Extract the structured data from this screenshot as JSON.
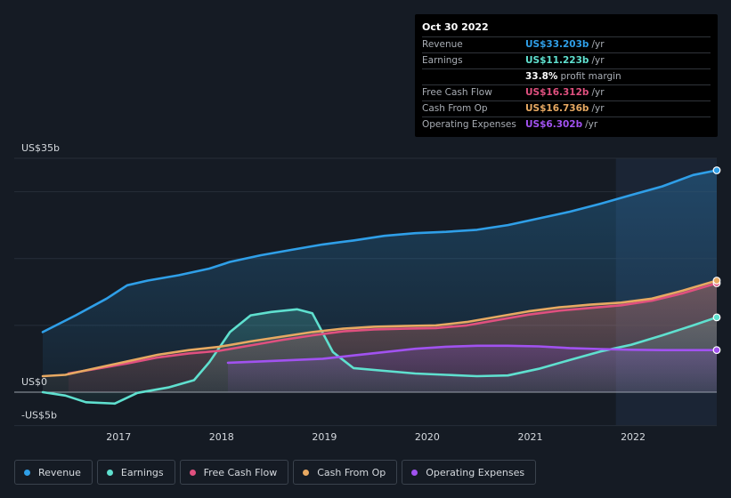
{
  "tooltip": {
    "date": "Oct 30 2022",
    "rows": [
      {
        "label": "Revenue",
        "value": "US$33.203b",
        "unit": "/yr",
        "color": "#2f9fe8"
      },
      {
        "label": "Earnings",
        "value": "US$11.223b",
        "unit": "/yr",
        "color": "#5fe0cf"
      },
      {
        "label": "",
        "value": "33.8%",
        "unit": "profit margin",
        "color": "#ffffff"
      },
      {
        "label": "Free Cash Flow",
        "value": "US$16.312b",
        "unit": "/yr",
        "color": "#e0507f"
      },
      {
        "label": "Cash From Op",
        "value": "US$16.736b",
        "unit": "/yr",
        "color": "#e7a962"
      },
      {
        "label": "Operating Expenses",
        "value": "US$6.302b",
        "unit": "/yr",
        "color": "#a152f0"
      }
    ]
  },
  "legend": [
    {
      "label": "Revenue",
      "color": "#2f9fe8"
    },
    {
      "label": "Earnings",
      "color": "#5fe0cf"
    },
    {
      "label": "Free Cash Flow",
      "color": "#e0507f"
    },
    {
      "label": "Cash From Op",
      "color": "#e7a962"
    },
    {
      "label": "Operating Expenses",
      "color": "#a152f0"
    }
  ],
  "chart_data": {
    "type": "line",
    "title": "",
    "xlabel": "",
    "ylabel": "",
    "x_ticks": [
      "2017",
      "2018",
      "2019",
      "2020",
      "2021",
      "2022"
    ],
    "y_labels": {
      "top": "US$35b",
      "zero": "US$0",
      "bottom": "-US$5b"
    },
    "ylim": [
      -5,
      35
    ],
    "xlim": [
      2016.28,
      2022.83
    ],
    "forecast_start": 2021.85,
    "series": [
      {
        "name": "Revenue",
        "color": "#2f9fe8",
        "points": [
          [
            2016.28,
            9
          ],
          [
            2016.6,
            11.5
          ],
          [
            2016.9,
            14
          ],
          [
            2017.1,
            16
          ],
          [
            2017.3,
            16.7
          ],
          [
            2017.6,
            17.5
          ],
          [
            2017.9,
            18.5
          ],
          [
            2018.1,
            19.5
          ],
          [
            2018.4,
            20.5
          ],
          [
            2018.7,
            21.3
          ],
          [
            2019.0,
            22.1
          ],
          [
            2019.3,
            22.7
          ],
          [
            2019.6,
            23.4
          ],
          [
            2019.9,
            23.8
          ],
          [
            2020.2,
            24
          ],
          [
            2020.5,
            24.3
          ],
          [
            2020.8,
            25
          ],
          [
            2021.1,
            26
          ],
          [
            2021.4,
            27
          ],
          [
            2021.7,
            28.2
          ],
          [
            2022.0,
            29.5
          ],
          [
            2022.3,
            30.8
          ],
          [
            2022.6,
            32.5
          ],
          [
            2022.83,
            33.2
          ]
        ]
      },
      {
        "name": "Earnings",
        "color": "#5fe0cf",
        "points": [
          [
            2016.28,
            0
          ],
          [
            2016.5,
            -0.5
          ],
          [
            2016.7,
            -1.5
          ],
          [
            2016.98,
            -1.7
          ],
          [
            2017.2,
            -0.1
          ],
          [
            2017.5,
            0.7
          ],
          [
            2017.75,
            1.8
          ],
          [
            2017.9,
            4.5
          ],
          [
            2018.1,
            9
          ],
          [
            2018.3,
            11.5
          ],
          [
            2018.5,
            12
          ],
          [
            2018.75,
            12.4
          ],
          [
            2018.9,
            11.8
          ],
          [
            2019.1,
            6
          ],
          [
            2019.3,
            3.6
          ],
          [
            2019.6,
            3.2
          ],
          [
            2019.9,
            2.8
          ],
          [
            2020.2,
            2.6
          ],
          [
            2020.5,
            2.4
          ],
          [
            2020.8,
            2.5
          ],
          [
            2021.1,
            3.5
          ],
          [
            2021.4,
            4.8
          ],
          [
            2021.7,
            6.1
          ],
          [
            2022.0,
            7.1
          ],
          [
            2022.3,
            8.5
          ],
          [
            2022.6,
            10
          ],
          [
            2022.83,
            11.2
          ]
        ]
      },
      {
        "name": "Free Cash Flow",
        "color": "#e0507f",
        "points": [
          [
            2016.53,
            2.8
          ],
          [
            2016.8,
            3.5
          ],
          [
            2017.1,
            4.3
          ],
          [
            2017.4,
            5.2
          ],
          [
            2017.7,
            5.8
          ],
          [
            2018.0,
            6.2
          ],
          [
            2018.3,
            7
          ],
          [
            2018.6,
            7.8
          ],
          [
            2018.9,
            8.5
          ],
          [
            2019.2,
            9.1
          ],
          [
            2019.5,
            9.4
          ],
          [
            2019.8,
            9.5
          ],
          [
            2020.1,
            9.6
          ],
          [
            2020.4,
            10
          ],
          [
            2020.7,
            10.8
          ],
          [
            2021.0,
            11.6
          ],
          [
            2021.3,
            12.2
          ],
          [
            2021.6,
            12.6
          ],
          [
            2021.9,
            13
          ],
          [
            2022.2,
            13.7
          ],
          [
            2022.5,
            14.8
          ],
          [
            2022.83,
            16.3
          ]
        ]
      },
      {
        "name": "Cash From Op",
        "color": "#e7a962",
        "points": [
          [
            2016.28,
            2.4
          ],
          [
            2016.5,
            2.6
          ],
          [
            2016.8,
            3.6
          ],
          [
            2017.1,
            4.6
          ],
          [
            2017.4,
            5.6
          ],
          [
            2017.7,
            6.3
          ],
          [
            2018.0,
            6.8
          ],
          [
            2018.3,
            7.6
          ],
          [
            2018.6,
            8.3
          ],
          [
            2018.9,
            9
          ],
          [
            2019.2,
            9.5
          ],
          [
            2019.5,
            9.8
          ],
          [
            2019.8,
            9.9
          ],
          [
            2020.1,
            10
          ],
          [
            2020.4,
            10.5
          ],
          [
            2020.7,
            11.3
          ],
          [
            2021.0,
            12.1
          ],
          [
            2021.3,
            12.7
          ],
          [
            2021.6,
            13.1
          ],
          [
            2021.9,
            13.4
          ],
          [
            2022.2,
            14
          ],
          [
            2022.5,
            15.2
          ],
          [
            2022.83,
            16.7
          ]
        ]
      },
      {
        "name": "Operating Expenses",
        "color": "#a152f0",
        "points": [
          [
            2018.08,
            4.4
          ],
          [
            2018.4,
            4.6
          ],
          [
            2018.7,
            4.8
          ],
          [
            2019.0,
            5
          ],
          [
            2019.3,
            5.5
          ],
          [
            2019.6,
            6
          ],
          [
            2019.9,
            6.5
          ],
          [
            2020.2,
            6.8
          ],
          [
            2020.5,
            6.95
          ],
          [
            2020.8,
            6.95
          ],
          [
            2021.1,
            6.85
          ],
          [
            2021.4,
            6.6
          ],
          [
            2021.7,
            6.45
          ],
          [
            2022.0,
            6.35
          ],
          [
            2022.3,
            6.3
          ],
          [
            2022.83,
            6.3
          ]
        ]
      }
    ]
  }
}
